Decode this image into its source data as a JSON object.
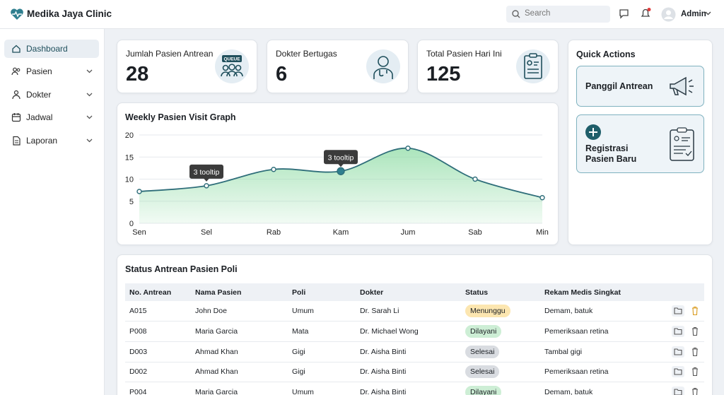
{
  "header": {
    "title": "Medika Jaya Clinic",
    "search_placeholder": "Search",
    "user": "Admin"
  },
  "sidebar": {
    "items": [
      "Dashboard",
      "Pasien",
      "Dokter",
      "Jadwal",
      "Laporan"
    ]
  },
  "stats": [
    {
      "label": "Jumlah Pasien Antrean",
      "value": 28,
      "badge": "QUEUE"
    },
    {
      "label": "Dokter Bertugas",
      "value": 6
    },
    {
      "label": "Total Pasien Hari Ini",
      "value": 125
    }
  ],
  "chart_data": {
    "type": "line",
    "title": "Weekly Pasien Visit Graph",
    "categories": [
      "Sen",
      "Sel",
      "Rab",
      "Kam",
      "Jum",
      "Sab",
      "Min"
    ],
    "values": [
      7.2,
      8.5,
      12.2,
      11.8,
      17,
      10,
      5.8
    ],
    "color": "#2f6e7a",
    "area_color": "#8fdca5",
    "ylim": [
      0,
      20
    ],
    "yticks": [
      0,
      5,
      10,
      15,
      20
    ],
    "grid": true,
    "annotations": [
      {
        "label": "3 tooltip",
        "category": "Sel"
      },
      {
        "label": "3 tooltip",
        "category": "Kam"
      }
    ]
  },
  "quick_actions": {
    "title": "Quick Actions",
    "items": [
      "Panggil Antrean",
      "Registrasi Pasien Baru"
    ]
  },
  "table": {
    "title": "Status Antrean Pasien Poli",
    "columns": [
      "No. Antrean",
      "Nama Pasien",
      "Poli",
      "Dokter",
      "Status",
      "Rekam Medis Singkat"
    ],
    "rows": [
      {
        "no": "A015",
        "name": "John Doe",
        "poli": "Umum",
        "doctor": "Dr. Sarah Li",
        "status": {
          "label": "Menunggu",
          "color": "#fce6b0"
        },
        "notes": "Demam, batuk"
      },
      {
        "no": "P008",
        "name": "Maria Garcia",
        "poli": "Mata",
        "doctor": "Dr. Michael Wong",
        "status": {
          "label": "Dilayani",
          "color": "#cdeed5"
        },
        "notes": "Pemeriksaan retina"
      },
      {
        "no": "D003",
        "name": "Ahmad Khan",
        "poli": "Gigi",
        "doctor": "Dr. Aisha Binti",
        "status": {
          "label": "Selesai",
          "color": "#d9dce1"
        },
        "notes": "Tambal gigi"
      },
      {
        "no": "D002",
        "name": "Ahmad Khan",
        "poli": "Gigi",
        "doctor": "Dr. Aisha Binti",
        "status": {
          "label": "Selesai",
          "color": "#d9dce1"
        },
        "notes": "Pemeriksaan retina"
      },
      {
        "no": "P004",
        "name": "Maria Garcia",
        "poli": "Umum",
        "doctor": "Dr. Aisha Binti",
        "status": {
          "label": "Dilayani",
          "color": "#cdeed5"
        },
        "notes": "Demam, batuk"
      }
    ]
  }
}
